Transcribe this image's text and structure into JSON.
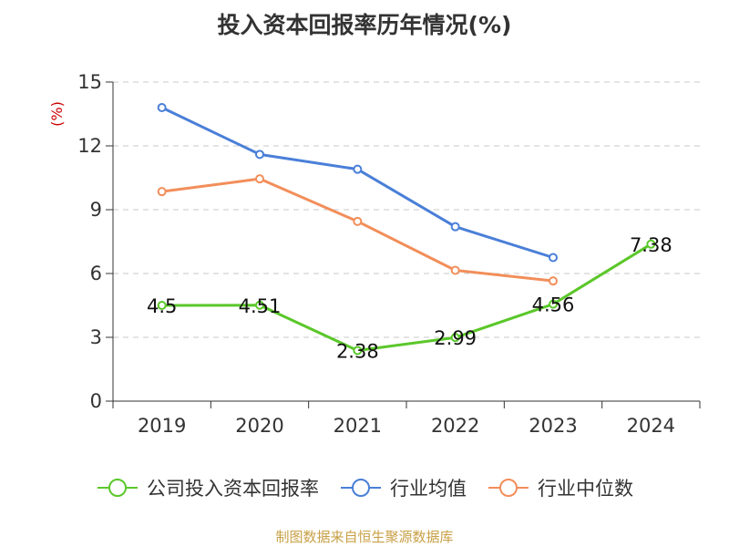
{
  "chart_data": {
    "type": "line",
    "title": "投入资本回报率历年情况(%)",
    "ylabel": "(%)",
    "xlabel": "",
    "categories": [
      "2019",
      "2020",
      "2021",
      "2022",
      "2023",
      "2024"
    ],
    "ylim": [
      0,
      15
    ],
    "yticks": [
      0,
      3,
      6,
      9,
      12,
      15
    ],
    "grid": true,
    "legend_position": "bottom",
    "series": [
      {
        "name": "公司投入资本回报率",
        "color": "#5bc72a",
        "values": [
          4.5,
          4.51,
          2.38,
          2.99,
          4.56,
          7.38
        ],
        "labels": [
          "4.5",
          "4.51",
          "2.38",
          "2.99",
          "4.56",
          "7.38"
        ]
      },
      {
        "name": "行业均值",
        "color": "#4a7fd8",
        "values": [
          13.8,
          11.6,
          10.9,
          8.2,
          6.75,
          null
        ]
      },
      {
        "name": "行业中位数",
        "color": "#f28e5a",
        "values": [
          9.85,
          10.45,
          8.45,
          6.15,
          5.65,
          null
        ]
      }
    ],
    "source": "制图数据来自恒生聚源数据库"
  }
}
